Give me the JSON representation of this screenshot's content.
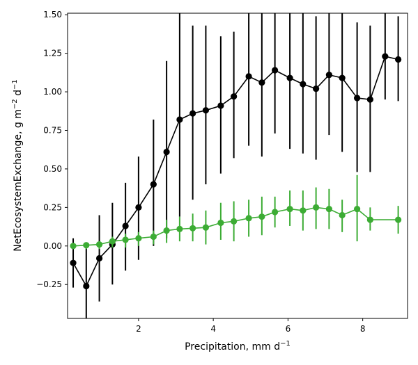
{
  "chart_data": {
    "type": "scatter",
    "xlabel": "Precipitation,  mm d",
    "xlabel_sup": "−1",
    "ylabel": "NetEcosystemExchange,  g m",
    "ylabel_sup1": "−2",
    "ylabel_mid": " d",
    "ylabel_sup2": "−1",
    "xlim": [
      0.1,
      9.2
    ],
    "ylim": [
      -0.47,
      1.51
    ],
    "xticks": [
      2,
      4,
      6,
      8
    ],
    "xtick_labels": [
      "2",
      "4",
      "6",
      "8"
    ],
    "yticks": [
      -0.25,
      0.0,
      0.25,
      0.5,
      0.75,
      1.0,
      1.25,
      1.5
    ],
    "ytick_labels": [
      "−0.25",
      "0.00",
      "0.25",
      "0.50",
      "0.75",
      "1.00",
      "1.25",
      "1.50"
    ],
    "grid": false,
    "series": [
      {
        "color": "#000000",
        "x": [
          0.25,
          0.6,
          0.95,
          1.3,
          1.65,
          2.0,
          2.4,
          2.75,
          3.1,
          3.45,
          3.8,
          4.2,
          4.55,
          4.95,
          5.3,
          5.65,
          6.05,
          6.4,
          6.75,
          7.1,
          7.45,
          7.85,
          8.2,
          8.6,
          8.95
        ],
        "y": [
          -0.11,
          -0.26,
          -0.08,
          0.01,
          0.13,
          0.25,
          0.4,
          0.61,
          0.82,
          0.86,
          0.88,
          0.91,
          0.97,
          1.1,
          1.06,
          1.14,
          1.09,
          1.05,
          1.02,
          1.11,
          1.09,
          0.96,
          0.95,
          1.23,
          1.21
        ],
        "err_low": [
          -0.27,
          -0.47,
          -0.36,
          -0.25,
          -0.16,
          -0.09,
          0.0,
          0.05,
          0.19,
          0.3,
          0.4,
          0.47,
          0.57,
          0.65,
          0.58,
          0.73,
          0.63,
          0.6,
          0.56,
          0.72,
          0.61,
          0.48,
          0.48,
          0.95,
          0.94
        ],
        "err_high": [
          0.05,
          -0.01,
          0.2,
          0.28,
          0.41,
          0.58,
          0.82,
          1.2,
          1.51,
          1.43,
          1.43,
          1.36,
          1.39,
          1.51,
          1.51,
          1.51,
          1.51,
          1.51,
          1.49,
          1.51,
          1.51,
          1.45,
          1.43,
          1.51,
          1.49
        ]
      },
      {
        "color": "#3cac34",
        "x": [
          0.25,
          0.6,
          0.95,
          1.3,
          1.65,
          2.0,
          2.4,
          2.75,
          3.1,
          3.45,
          3.8,
          4.2,
          4.55,
          4.95,
          5.3,
          5.65,
          6.05,
          6.4,
          6.75,
          7.1,
          7.45,
          7.85,
          8.2,
          8.95
        ],
        "y": [
          0.0,
          0.005,
          0.01,
          0.03,
          0.04,
          0.05,
          0.06,
          0.1,
          0.11,
          0.115,
          0.12,
          0.15,
          0.16,
          0.18,
          0.19,
          0.22,
          0.24,
          0.23,
          0.25,
          0.24,
          0.2,
          0.24,
          0.17,
          0.17
        ],
        "err_low": [
          -0.02,
          -0.02,
          -0.02,
          -0.01,
          -0.01,
          0.0,
          0.01,
          0.02,
          0.03,
          0.03,
          0.01,
          0.04,
          0.03,
          0.06,
          0.07,
          0.12,
          0.13,
          0.1,
          0.11,
          0.11,
          0.09,
          0.03,
          0.1,
          0.08
        ],
        "err_high": [
          0.02,
          0.02,
          0.03,
          0.06,
          0.08,
          0.09,
          0.1,
          0.17,
          0.19,
          0.21,
          0.23,
          0.28,
          0.29,
          0.3,
          0.32,
          0.32,
          0.36,
          0.36,
          0.38,
          0.37,
          0.3,
          0.46,
          0.25,
          0.26
        ]
      }
    ]
  }
}
